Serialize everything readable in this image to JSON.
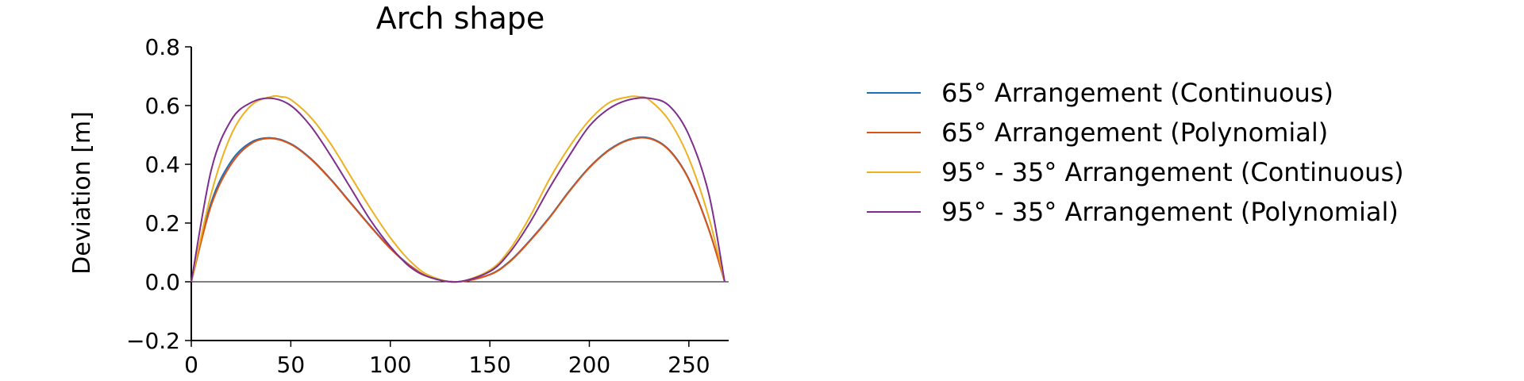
{
  "chart_data": {
    "type": "line",
    "title": "Arch shape",
    "xlabel": "",
    "ylabel": "Deviation [m]",
    "xlim": [
      0,
      270
    ],
    "ylim": [
      -0.2,
      0.8
    ],
    "xticks": [
      0,
      50,
      100,
      150,
      200,
      250
    ],
    "yticks": [
      -0.2,
      0.0,
      0.2,
      0.4,
      0.6,
      0.8
    ],
    "xtick_labels": [
      "0",
      "50",
      "100",
      "150",
      "200",
      "250"
    ],
    "ytick_labels": [
      "−0.2",
      "0.0",
      "0.2",
      "0.4",
      "0.6",
      "0.8"
    ],
    "zero_line": true,
    "grid": false,
    "legend_position": "right",
    "series": [
      {
        "name": "65° Arrangement (Continuous)",
        "color": "#1f6fb4",
        "x": [
          0,
          10,
          20,
          30,
          40,
          50,
          60,
          70,
          80,
          90,
          100,
          110,
          120,
          134,
          150,
          160,
          170,
          180,
          190,
          200,
          210,
          220,
          230,
          240,
          250,
          260,
          268
        ],
        "y": [
          0.0,
          0.27,
          0.41,
          0.475,
          0.49,
          0.47,
          0.42,
          0.35,
          0.27,
          0.19,
          0.115,
          0.055,
          0.015,
          0.0,
          0.025,
          0.07,
          0.14,
          0.22,
          0.31,
          0.39,
          0.45,
          0.485,
          0.49,
          0.45,
          0.35,
          0.18,
          0.0
        ]
      },
      {
        "name": "65° Arrangement (Polynomial)",
        "color": "#d95319",
        "x": [
          0,
          10,
          20,
          30,
          40,
          50,
          60,
          70,
          80,
          90,
          100,
          110,
          120,
          134,
          150,
          160,
          170,
          180,
          190,
          200,
          210,
          220,
          230,
          240,
          250,
          260,
          268
        ],
        "y": [
          0.0,
          0.26,
          0.4,
          0.47,
          0.488,
          0.468,
          0.418,
          0.348,
          0.268,
          0.188,
          0.113,
          0.054,
          0.015,
          0.0,
          0.024,
          0.068,
          0.138,
          0.218,
          0.308,
          0.388,
          0.448,
          0.483,
          0.488,
          0.448,
          0.348,
          0.178,
          0.0
        ]
      },
      {
        "name": "95° - 35° Arrangement (Continuous)",
        "color": "#edb120",
        "x": [
          0,
          10,
          20,
          30,
          40,
          45,
          50,
          60,
          70,
          80,
          90,
          100,
          110,
          120,
          134,
          150,
          160,
          170,
          180,
          190,
          200,
          210,
          220,
          225,
          230,
          240,
          250,
          260,
          268
        ],
        "y": [
          0.0,
          0.3,
          0.5,
          0.6,
          0.63,
          0.63,
          0.62,
          0.56,
          0.47,
          0.36,
          0.25,
          0.15,
          0.07,
          0.02,
          0.0,
          0.04,
          0.11,
          0.22,
          0.35,
          0.46,
          0.55,
          0.61,
          0.63,
          0.63,
          0.62,
          0.55,
          0.42,
          0.22,
          0.0
        ]
      },
      {
        "name": "95° - 35° Arrangement (Polynomial)",
        "color": "#7e2f8e",
        "x": [
          0,
          10,
          20,
          30,
          40,
          50,
          60,
          70,
          80,
          90,
          100,
          110,
          120,
          134,
          150,
          160,
          170,
          180,
          190,
          200,
          210,
          220,
          230,
          240,
          250,
          260,
          268
        ],
        "y": [
          0.0,
          0.38,
          0.55,
          0.61,
          0.625,
          0.6,
          0.53,
          0.43,
          0.32,
          0.21,
          0.12,
          0.05,
          0.015,
          0.0,
          0.035,
          0.1,
          0.2,
          0.32,
          0.43,
          0.53,
          0.59,
          0.62,
          0.625,
          0.6,
          0.5,
          0.3,
          0.0
        ]
      }
    ]
  }
}
